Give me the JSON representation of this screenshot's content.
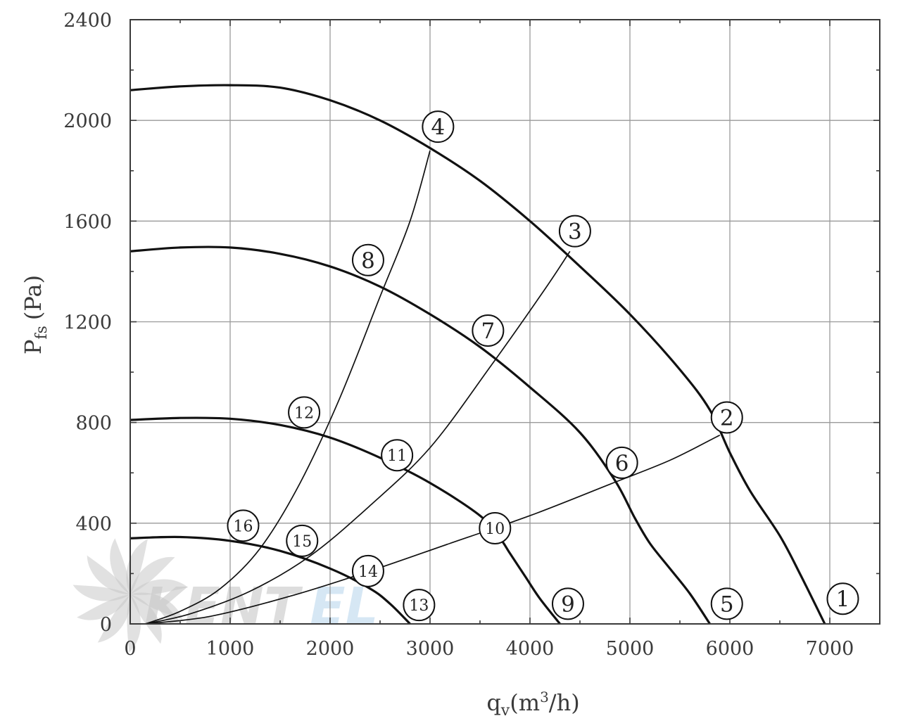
{
  "chart_data": {
    "type": "line",
    "xlabel": "q_v (m³/h)",
    "ylabel": "P_fs (Pa)",
    "xlabel_parts": {
      "q": "q",
      "q_sub": "v",
      "unit_open": "(m",
      "unit_sup": "3",
      "unit_close": "/h)"
    },
    "ylabel_parts": {
      "p": "P",
      "p_sub": "fs",
      "unit": "(Pa)"
    },
    "xlim": [
      0,
      7500
    ],
    "ylim": [
      0,
      2400
    ],
    "xticks": [
      0,
      1000,
      2000,
      3000,
      4000,
      5000,
      6000,
      7000
    ],
    "yticks": [
      0,
      400,
      800,
      1200,
      1600,
      2000,
      2400
    ],
    "grid": true,
    "colors": {
      "axis": "#3a3a3a",
      "grid": "#9a9a9a",
      "curve": "#111111",
      "watermark_gray": "#c8c8c8",
      "watermark_blue": "#cfe3f3"
    },
    "fan_curves": [
      {
        "points": [
          [
            0,
            2120
          ],
          [
            500,
            2135
          ],
          [
            1000,
            2140
          ],
          [
            1500,
            2130
          ],
          [
            2000,
            2080
          ],
          [
            2500,
            2000
          ],
          [
            3000,
            1890
          ],
          [
            3500,
            1760
          ],
          [
            4000,
            1600
          ],
          [
            4500,
            1420
          ],
          [
            5000,
            1230
          ],
          [
            5500,
            1010
          ],
          [
            5800,
            850
          ],
          [
            6000,
            680
          ],
          [
            6200,
            530
          ],
          [
            6500,
            350
          ],
          [
            6700,
            200
          ],
          [
            6950,
            0
          ]
        ]
      },
      {
        "points": [
          [
            0,
            1480
          ],
          [
            500,
            1495
          ],
          [
            1000,
            1495
          ],
          [
            1500,
            1470
          ],
          [
            2000,
            1420
          ],
          [
            2500,
            1340
          ],
          [
            3000,
            1230
          ],
          [
            3500,
            1100
          ],
          [
            4000,
            940
          ],
          [
            4500,
            760
          ],
          [
            4850,
            570
          ],
          [
            5050,
            420
          ],
          [
            5200,
            320
          ],
          [
            5400,
            220
          ],
          [
            5600,
            120
          ],
          [
            5800,
            0
          ]
        ]
      },
      {
        "points": [
          [
            0,
            810
          ],
          [
            500,
            818
          ],
          [
            1000,
            815
          ],
          [
            1500,
            790
          ],
          [
            2000,
            740
          ],
          [
            2500,
            660
          ],
          [
            3000,
            560
          ],
          [
            3500,
            430
          ],
          [
            3700,
            340
          ],
          [
            3800,
            280
          ],
          [
            3950,
            190
          ],
          [
            4100,
            100
          ],
          [
            4300,
            0
          ]
        ]
      },
      {
        "points": [
          [
            0,
            340
          ],
          [
            500,
            345
          ],
          [
            1000,
            330
          ],
          [
            1500,
            290
          ],
          [
            2000,
            220
          ],
          [
            2400,
            140
          ],
          [
            2600,
            80
          ],
          [
            2800,
            0
          ]
        ]
      }
    ],
    "system_curves": [
      {
        "points": [
          [
            150,
            0
          ],
          [
            800,
            30
          ],
          [
            1600,
            110
          ],
          [
            2400,
            210
          ],
          [
            3200,
            320
          ],
          [
            4000,
            430
          ],
          [
            4800,
            555
          ],
          [
            5400,
            650
          ],
          [
            5900,
            750
          ]
        ]
      },
      {
        "points": [
          [
            150,
            0
          ],
          [
            600,
            40
          ],
          [
            1200,
            130
          ],
          [
            1800,
            270
          ],
          [
            2400,
            470
          ],
          [
            3000,
            700
          ],
          [
            3600,
            1020
          ],
          [
            4150,
            1330
          ],
          [
            4400,
            1480
          ]
        ]
      },
      {
        "points": [
          [
            150,
            0
          ],
          [
            500,
            50
          ],
          [
            900,
            140
          ],
          [
            1300,
            300
          ],
          [
            1700,
            560
          ],
          [
            2100,
            900
          ],
          [
            2500,
            1300
          ],
          [
            2800,
            1600
          ],
          [
            3000,
            1880
          ]
        ]
      }
    ],
    "callouts": [
      {
        "label": "1",
        "x": 7130,
        "y": 100
      },
      {
        "label": "2",
        "x": 5970,
        "y": 820
      },
      {
        "label": "3",
        "x": 4450,
        "y": 1560
      },
      {
        "label": "4",
        "x": 3080,
        "y": 1975
      },
      {
        "label": "5",
        "x": 5970,
        "y": 80
      },
      {
        "label": "6",
        "x": 4920,
        "y": 640
      },
      {
        "label": "7",
        "x": 3580,
        "y": 1165
      },
      {
        "label": "8",
        "x": 2380,
        "y": 1445
      },
      {
        "label": "9",
        "x": 4380,
        "y": 80
      },
      {
        "label": "10",
        "x": 3650,
        "y": 380
      },
      {
        "label": "11",
        "x": 2670,
        "y": 670
      },
      {
        "label": "12",
        "x": 1740,
        "y": 840
      },
      {
        "label": "13",
        "x": 2890,
        "y": 75
      },
      {
        "label": "14",
        "x": 2380,
        "y": 210
      },
      {
        "label": "15",
        "x": 1720,
        "y": 330
      },
      {
        "label": "16",
        "x": 1130,
        "y": 390
      }
    ],
    "watermark": {
      "part1": "KENT",
      "part2": "EL"
    }
  }
}
